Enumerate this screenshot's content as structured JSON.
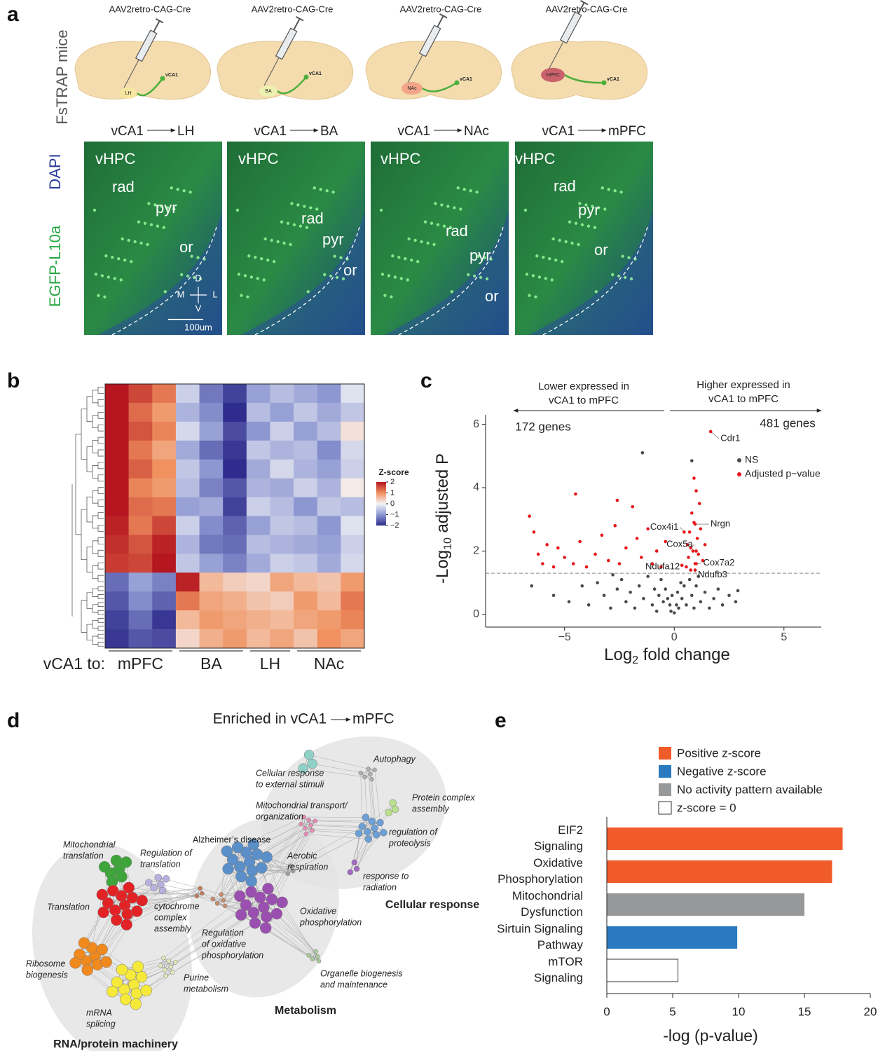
{
  "panel_labels": [
    "a",
    "b",
    "c",
    "d",
    "e"
  ],
  "panel_a": {
    "side_label": "FsTRAP mice",
    "channels": [
      "DAPI",
      "EGFP-L10a"
    ],
    "scale_bar": "100um",
    "compass": [
      "D",
      "M",
      "L",
      "V"
    ],
    "columns": [
      {
        "vector": "AAV2retro-CAG-Cre",
        "source": "vCA1",
        "target": "LH",
        "sketch_region": "LH",
        "sketch_source": "vCA1",
        "image_labels": [
          "vHPC",
          "rad",
          "pyr",
          "or"
        ]
      },
      {
        "vector": "AAV2retro-CAG-Cre",
        "source": "vCA1",
        "target": "BA",
        "sketch_region": "BA",
        "sketch_source": "vCA1",
        "image_labels": [
          "vHPC",
          "rad",
          "pyr",
          "or"
        ]
      },
      {
        "vector": "AAV2retro-CAG-Cre",
        "source": "vCA1",
        "target": "NAc",
        "sketch_region": "NAc",
        "sketch_source": "vCA1",
        "image_labels": [
          "vHPC",
          "rad",
          "pyr",
          "or"
        ]
      },
      {
        "vector": "AAV2retro-CAG-Cre",
        "source": "vCA1",
        "target": "mPFC",
        "sketch_region": "mPFC",
        "sketch_source": "vCA1",
        "image_labels": [
          "vHPC",
          "rad",
          "pyr",
          "or"
        ]
      }
    ]
  },
  "panel_d": {
    "title_source": "Enriched in vCA1",
    "title_target": "mPFC",
    "terms": [
      [
        "Cellular response",
        "to external stimuli"
      ],
      [
        "Autophagy"
      ],
      [
        "Protein complex",
        "assembly"
      ],
      [
        "Mitochondrial transport/",
        "organization"
      ],
      [
        "regulation of",
        "proteolysis"
      ],
      [
        "Alzheimer’s disease"
      ],
      [
        "Aerobic",
        "respiration"
      ],
      [
        "response to",
        "radiation"
      ],
      [
        "Mitochondrial",
        "translation"
      ],
      [
        "Regulation of",
        "translation"
      ],
      [
        "Translation"
      ],
      [
        "cytochrome",
        "complex",
        "assembly"
      ],
      [
        "Regulation",
        "of oxidative",
        "phosphorylation"
      ],
      [
        "Oxidative",
        "phosphorylation"
      ],
      [
        "Ribosome",
        "biogenesis"
      ],
      [
        "Purine",
        "metabolism"
      ],
      [
        "Organelle biogenesis",
        "and maintenance"
      ],
      [
        "mRNA",
        "splicing"
      ]
    ],
    "groups": [
      "Cellular response",
      "Metabolism",
      "RNA/protein machinery"
    ]
  },
  "chart_data": [
    {
      "type": "heatmap",
      "x_label": "vCA1 to:",
      "groups": [
        {
          "name": "mPFC",
          "count": 3
        },
        {
          "name": "BA",
          "count": 3
        },
        {
          "name": "LH",
          "count": 2
        },
        {
          "name": "NAc",
          "count": 3
        }
      ],
      "values": [
        [
          2.2,
          1.6,
          1.2,
          -0.4,
          -1.3,
          -1.8,
          -0.9,
          -0.6,
          -0.8,
          -1.0,
          -0.2
        ],
        [
          2.1,
          1.3,
          0.9,
          -0.7,
          -1.1,
          -2.0,
          -0.6,
          -0.9,
          -0.5,
          -0.8,
          -0.5
        ],
        [
          2.0,
          1.5,
          1.1,
          -0.3,
          -0.9,
          -1.7,
          -1.0,
          -0.4,
          -0.9,
          -0.6,
          0.2
        ],
        [
          2.2,
          1.2,
          0.8,
          -0.8,
          -1.4,
          -1.9,
          -0.5,
          -0.7,
          -0.6,
          -1.1,
          -0.3
        ],
        [
          2.1,
          1.4,
          1.0,
          -0.5,
          -1.0,
          -2.1,
          -0.8,
          -0.3,
          -0.7,
          -0.9,
          -0.4
        ],
        [
          2.0,
          1.1,
          0.9,
          -0.6,
          -1.2,
          -1.6,
          -0.7,
          -0.8,
          -0.4,
          -0.7,
          0.1
        ],
        [
          2.1,
          1.3,
          1.2,
          -0.9,
          -0.8,
          -1.8,
          -0.4,
          -0.6,
          -1.0,
          -0.5,
          -0.6
        ],
        [
          1.9,
          1.2,
          1.6,
          -0.4,
          -1.1,
          -1.5,
          -0.9,
          -0.5,
          -0.6,
          -1.0,
          -0.2
        ],
        [
          1.8,
          1.5,
          1.9,
          -0.7,
          -1.3,
          -1.4,
          -0.6,
          -0.7,
          -0.8,
          -0.9,
          -0.4
        ],
        [
          1.7,
          1.6,
          2.0,
          -0.5,
          -0.9,
          -1.2,
          -0.8,
          -0.4,
          -0.5,
          -0.8,
          -0.3
        ],
        [
          -1.4,
          -0.9,
          -1.2,
          1.9,
          0.6,
          0.4,
          0.3,
          0.8,
          0.6,
          0.5,
          0.9
        ],
        [
          -1.6,
          -1.1,
          -1.5,
          1.2,
          0.8,
          0.7,
          0.5,
          0.4,
          0.9,
          0.6,
          1.2
        ],
        [
          -1.8,
          -1.4,
          -1.9,
          0.6,
          0.9,
          0.8,
          0.7,
          0.6,
          0.8,
          0.9,
          1.1
        ],
        [
          -1.9,
          -1.6,
          -1.7,
          0.3,
          0.7,
          0.9,
          0.6,
          0.8,
          0.5,
          1.0,
          0.8
        ]
      ],
      "colorbar_title": "Z-score",
      "zlim": [
        -2,
        2
      ],
      "zticks": [
        2,
        1,
        0,
        {
          "value": -1,
          "label": "−1"
        },
        {
          "value": -2,
          "label": "−2"
        }
      ],
      "colors": [
        "#2e2c8c",
        "#8d98d2",
        "#f4f4f6",
        "#f0915f",
        "#b5161f"
      ],
      "dendrogram": true
    },
    {
      "type": "scatter",
      "xlabel": [
        "Log",
        "2",
        " fold change"
      ],
      "ylabel": [
        "-Log",
        "10",
        " adjusted P"
      ],
      "left_note": [
        "Lower expressed in",
        "vCA1 to mPFC"
      ],
      "right_note": [
        "Higher expressed in",
        "vCA1 to mPFC"
      ],
      "left_count": "172 genes",
      "right_count": "481 genes",
      "xlim": [
        -8.6,
        6.7
      ],
      "ylim": [
        -0.4,
        6.3
      ],
      "xticks": [
        {
          "value": -5,
          "label": "−5"
        },
        0,
        5
      ],
      "yticks": [
        0,
        2,
        4,
        6
      ],
      "threshold": 1.3,
      "legend": "upper right",
      "series": [
        {
          "name": "NS",
          "color": "#4a4a4a",
          "x": [
            -5.5,
            -4.8,
            -4.2,
            -3.9,
            -3.5,
            -3.2,
            -2.9,
            -2.6,
            -2.4,
            -2.2,
            -2.0,
            -1.8,
            -1.6,
            -1.4,
            -1.2,
            -1.0,
            -0.9,
            -0.7,
            -0.6,
            -0.5,
            -0.4,
            -0.3,
            -0.2,
            -0.15,
            -0.1,
            0.0,
            0.1,
            0.15,
            0.2,
            0.3,
            0.35,
            0.45,
            0.55,
            0.7,
            0.8,
            0.9,
            1.0,
            1.2,
            1.4,
            1.6,
            1.8,
            2.0,
            2.2,
            2.5,
            2.8,
            -6.5,
            -2.8,
            1.1,
            2.9,
            -0.8,
            -1.45,
            0.8
          ],
          "y": [
            0.6,
            0.4,
            0.9,
            0.3,
            1.0,
            0.6,
            0.2,
            0.8,
            1.1,
            0.4,
            0.7,
            0.2,
            0.9,
            0.5,
            1.2,
            0.3,
            0.8,
            0.6,
            1.1,
            0.4,
            0.8,
            0.5,
            0.3,
            0.1,
            0.6,
            0.05,
            0.3,
            0.7,
            0.2,
            1.0,
            0.5,
            0.9,
            0.3,
            1.1,
            0.6,
            0.2,
            0.9,
            0.4,
            0.7,
            0.2,
            0.5,
            0.8,
            0.3,
            0.6,
            0.4,
            0.9,
            1.25,
            1.2,
            0.75,
            0.1,
            5.1,
            4.85
          ]
        },
        {
          "name": "Adjusted p−value",
          "color": "#e8141b",
          "x": [
            -6.6,
            -6.4,
            -6.2,
            -6.0,
            -5.8,
            -5.5,
            -5.3,
            -5.0,
            -4.6,
            -4.3,
            -4.0,
            -3.6,
            -3.3,
            -3.0,
            -2.7,
            -2.5,
            -2.2,
            -1.9,
            -1.7,
            -1.5,
            -1.2,
            -1.0,
            -0.8,
            -0.6,
            -0.4,
            0.55,
            0.6,
            0.65,
            0.7,
            0.75,
            0.8,
            0.85,
            0.9,
            0.95,
            1.0,
            1.05,
            1.1,
            1.15,
            1.2,
            1.3,
            1.4,
            0.9,
            -2.6,
            -4.5,
            1.0
          ],
          "y": [
            3.1,
            2.6,
            1.9,
            1.6,
            2.2,
            1.5,
            2.1,
            1.8,
            1.6,
            2.3,
            1.5,
            1.9,
            2.5,
            1.7,
            2.8,
            1.6,
            2.1,
            3.4,
            2.4,
            1.8,
            2.7,
            1.6,
            2.0,
            1.5,
            2.3,
            1.5,
            2.2,
            1.8,
            2.6,
            1.4,
            3.2,
            2.0,
            2.9,
            1.6,
            3.9,
            2.4,
            1.9,
            3.5,
            2.7,
            1.7,
            2.2,
            4.3,
            3.6,
            3.8,
            2.0
          ]
        }
      ],
      "labeled_points": [
        {
          "label": "Cdr1",
          "x": 1.66,
          "y": 5.77
        },
        {
          "label": "Nrgn",
          "x": 0.95,
          "y": 2.85
        },
        {
          "label": "Cox4i1",
          "x": 0.45,
          "y": 2.6
        },
        {
          "label": "Cox5a",
          "x": 0.75,
          "y": 2.1
        },
        {
          "label": "Ndufa12",
          "x": 0.35,
          "y": 1.55
        },
        {
          "label": "Cox7a2",
          "x": 1.0,
          "y": 1.6
        },
        {
          "label": "Ndufb3",
          "x": 0.95,
          "y": 1.4
        }
      ]
    },
    {
      "type": "barh",
      "categories": [
        [
          "EIF2",
          "Signaling"
        ],
        [
          "Oxidative",
          "Phosphorylation"
        ],
        [
          "Mitochondrial",
          "Dysfunction"
        ],
        [
          "Sirtuin Signaling",
          "Pathway"
        ],
        [
          "mTOR",
          "Signaling"
        ]
      ],
      "values": [
        17.9,
        17.1,
        15.0,
        9.9,
        5.4
      ],
      "colors": [
        "#f15a29",
        "#f15a29",
        "#97989a",
        "#2a7abf",
        "#ffffff"
      ],
      "legend": [
        {
          "label": "Positive z-score",
          "color": "#f15a29"
        },
        {
          "label": "Negative z-score",
          "color": "#2a7abf"
        },
        {
          "label": "No activity pattern available",
          "color": "#97989a"
        },
        {
          "label": "z-score = 0",
          "color": "#ffffff"
        }
      ],
      "xlabel": "-log (p-value)",
      "xlim": [
        0,
        20
      ],
      "xticks": [
        0,
        5,
        10,
        15,
        20
      ]
    }
  ]
}
